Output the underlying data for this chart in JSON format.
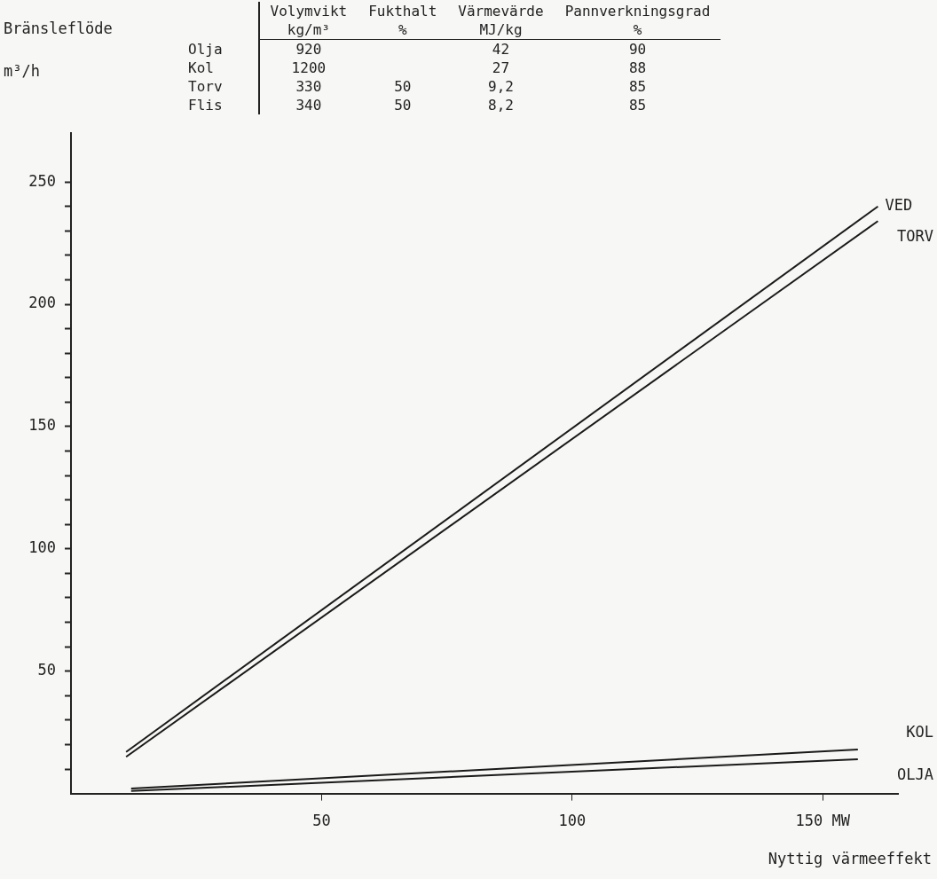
{
  "chart_data": {
    "type": "line",
    "xlabel": "Nyttig värmeeffekt",
    "annotations": [
      "\tVolymvikt\tFukthalt\tVärmevärde\tPannverkningsgrad",
      "\tkg/m³\t%\tMJ/kg\t%",
      "Olja\t920\t\t42\t90",
      "Kol\t1200\t\t27\t88",
      "Torv\t330\t50\t9,2\t85",
      "Flis\t340\t50\t8,2\t85",
      "Bränsleflöde",
      "m³/h"
    ],
    "series": [
      {
        "name": "VED",
        "color": "#1a1a1a",
        "x": [
          11,
          161
        ],
        "values": [
          17,
          240
        ]
      },
      {
        "name": "TORV",
        "color": "#1a1a1a",
        "x": [
          11,
          161
        ],
        "values": [
          15,
          234
        ]
      },
      {
        "name": "KOL",
        "color": "#1a1a1a",
        "x": [
          12,
          157
        ],
        "values": [
          2,
          18
        ]
      },
      {
        "name": "OLJA",
        "color": "#1a1a1a",
        "x": [
          12,
          157
        ],
        "values": [
          1,
          14
        ]
      }
    ],
    "xlim": [
      0,
      165
    ],
    "ylim": [
      0,
      270
    ],
    "xticks": [
      50,
      100,
      {
        "value": 150,
        "label": "150 MW"
      }
    ],
    "yticks": [
      {
        "value": 10,
        "label": null
      },
      {
        "value": 20,
        "label": null
      },
      {
        "value": 30,
        "label": null
      },
      {
        "value": 40,
        "label": null
      },
      50,
      {
        "value": 60,
        "label": null
      },
      {
        "value": 70,
        "label": null
      },
      {
        "value": 80,
        "label": null
      },
      {
        "value": 90,
        "label": null
      },
      100,
      {
        "value": 110,
        "label": null
      },
      {
        "value": 120,
        "label": null
      },
      {
        "value": 130,
        "label": null
      },
      {
        "value": 140,
        "label": null
      },
      150,
      {
        "value": 160,
        "label": null
      },
      {
        "value": 170,
        "label": null
      },
      {
        "value": 180,
        "label": null
      },
      {
        "value": 190,
        "label": null
      },
      200,
      {
        "value": 210,
        "label": null
      },
      {
        "value": 220,
        "label": null
      },
      {
        "value": 230,
        "label": null
      },
      {
        "value": 240,
        "label": null
      },
      250
    ],
    "grid": false,
    "legend": false,
    "marker": "none",
    "line_style": "solid"
  }
}
